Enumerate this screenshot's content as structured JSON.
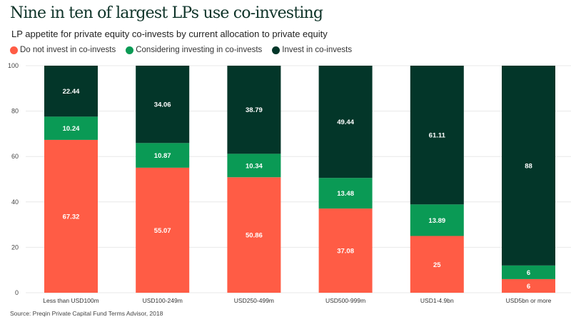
{
  "chart_data": {
    "type": "bar",
    "stacked": true,
    "title": "Nine in ten of largest LPs use co-investing",
    "subtitle": "LP appetite for private equity co-invests by current allocation to private equity",
    "xlabel": "",
    "ylabel": "",
    "ylim": [
      0,
      100
    ],
    "yticks": [
      0,
      20,
      40,
      60,
      80,
      100
    ],
    "grid": true,
    "legend_position": "top-left",
    "categories": [
      "Less than USD100m",
      "USD100-249m",
      "USD250-499m",
      "USD500-999m",
      "USD1-4.9bn",
      "USD5bn or more"
    ],
    "series": [
      {
        "name": "Do not invest in co-invests",
        "color": "#ff5c45",
        "values": [
          67.32,
          55.07,
          50.86,
          37.08,
          25,
          6
        ]
      },
      {
        "name": "Considering investing in co-invests",
        "color": "#0a9a55",
        "values": [
          10.24,
          10.87,
          10.34,
          13.48,
          13.89,
          6
        ]
      },
      {
        "name": "Invest in co-invests",
        "color": "#033629",
        "values": [
          22.44,
          34.06,
          38.79,
          49.44,
          61.11,
          88
        ]
      }
    ],
    "source": "Source: Preqin Private Capital Fund Terms Advisor, 2018"
  }
}
